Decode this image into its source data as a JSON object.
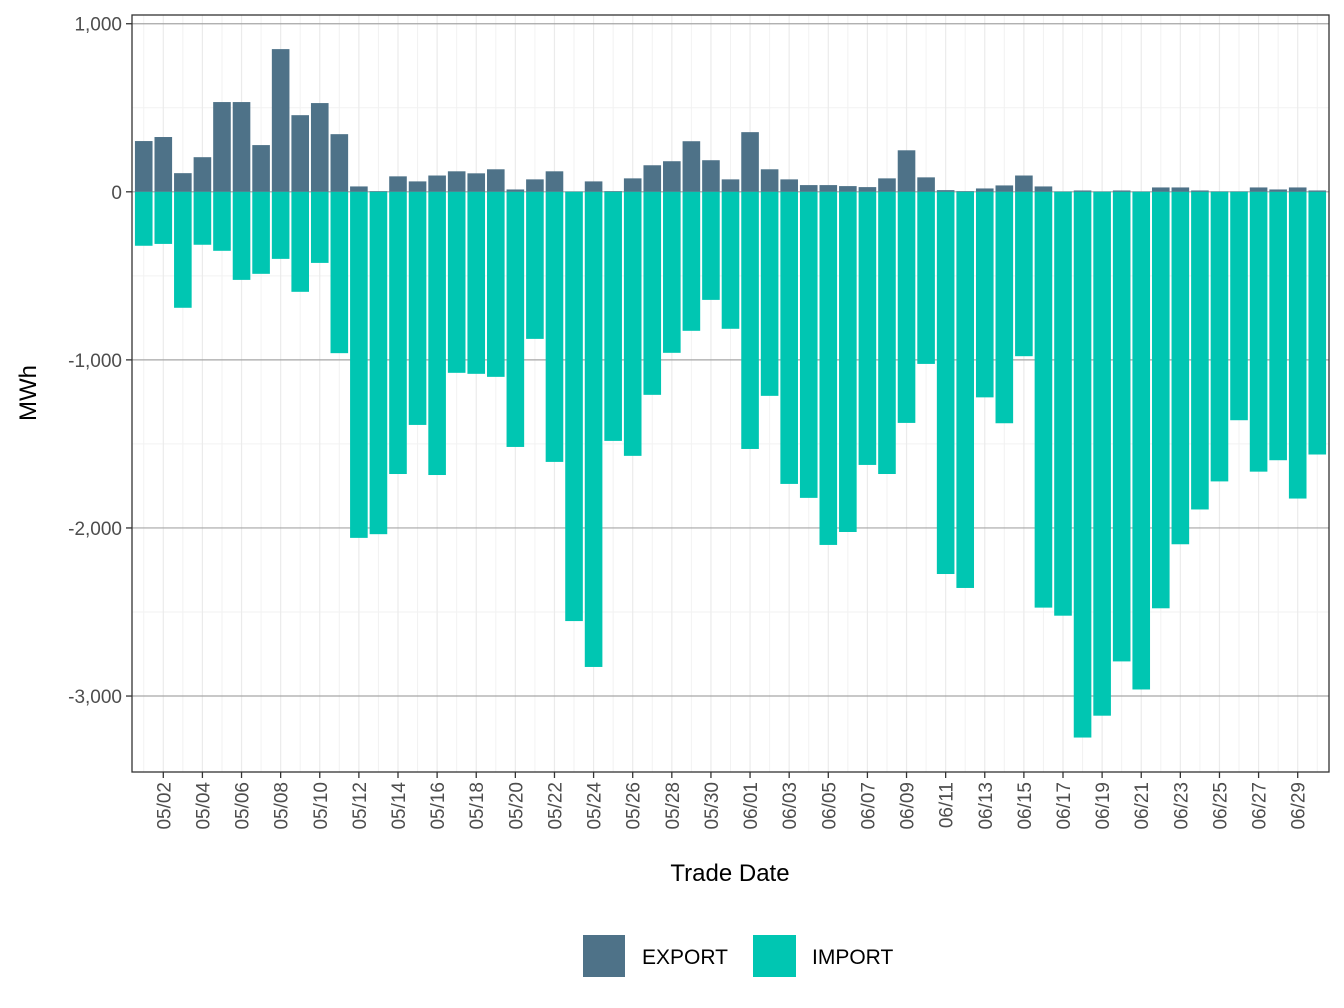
{
  "chart_data": {
    "type": "bar",
    "stacking": "diverging",
    "title": "",
    "xlabel": "Trade Date",
    "ylabel": "MWh",
    "ylim": [
      -3452,
      1052
    ],
    "y_ticks": [
      1000,
      0,
      -1000,
      -2000,
      -3000
    ],
    "y_tick_labels": [
      "1,000",
      "0",
      "-1,000",
      "-2,000",
      "-3,000"
    ],
    "y_minor_ticks": [
      500,
      -500,
      -1500,
      -2500
    ],
    "grid": true,
    "legend": {
      "position": "bottom",
      "entries": [
        "EXPORT",
        "IMPORT"
      ]
    },
    "categories": [
      "05/01",
      "05/02",
      "05/03",
      "05/04",
      "05/05",
      "05/06",
      "05/07",
      "05/08",
      "05/09",
      "05/10",
      "05/11",
      "05/12",
      "05/13",
      "05/14",
      "05/15",
      "05/16",
      "05/17",
      "05/18",
      "05/19",
      "05/20",
      "05/21",
      "05/22",
      "05/23",
      "05/24",
      "05/25",
      "05/26",
      "05/27",
      "05/28",
      "05/29",
      "05/30",
      "05/31",
      "06/01",
      "06/02",
      "06/03",
      "06/04",
      "06/05",
      "06/06",
      "06/07",
      "06/08",
      "06/09",
      "06/10",
      "06/11",
      "06/12",
      "06/13",
      "06/14",
      "06/15",
      "06/16",
      "06/17",
      "06/18",
      "06/19",
      "06/20",
      "06/21",
      "06/22",
      "06/23",
      "06/24",
      "06/25",
      "06/26",
      "06/27",
      "06/28",
      "06/29",
      "06/30"
    ],
    "x_tick_labels": [
      "05/02",
      "05/04",
      "05/06",
      "05/08",
      "05/10",
      "05/12",
      "05/14",
      "05/16",
      "05/18",
      "05/20",
      "05/22",
      "05/24",
      "05/26",
      "05/28",
      "05/30",
      "06/01",
      "06/03",
      "06/05",
      "06/07",
      "06/09",
      "06/11",
      "06/13",
      "06/15",
      "06/17",
      "06/19",
      "06/21",
      "06/23",
      "06/25",
      "06/27",
      "06/29"
    ],
    "series": [
      {
        "name": "EXPORT",
        "color": "#4E7288",
        "values": [
          302,
          326,
          111,
          206,
          534,
          534,
          278,
          849,
          456,
          528,
          343,
          32,
          4,
          92,
          62,
          97,
          122,
          110,
          134,
          14,
          74,
          122,
          1,
          62,
          4,
          80,
          158,
          182,
          301,
          188,
          74,
          355,
          134,
          74,
          40,
          40,
          34,
          28,
          80,
          247,
          86,
          10,
          4,
          20,
          38,
          97,
          32,
          1,
          8,
          1,
          8,
          1,
          26,
          26,
          8,
          2,
          2,
          26,
          14,
          26,
          8
        ]
      },
      {
        "name": "IMPORT",
        "color": "#00C6B2",
        "values": [
          -321,
          -310,
          -690,
          -315,
          -351,
          -524,
          -488,
          -399,
          -595,
          -423,
          -960,
          -2059,
          -2037,
          -1679,
          -1387,
          -1685,
          -1077,
          -1083,
          -1101,
          -1518,
          -875,
          -1607,
          -2554,
          -2827,
          -1482,
          -1571,
          -1208,
          -958,
          -827,
          -643,
          -815,
          -1530,
          -1214,
          -1738,
          -1821,
          -2101,
          -2024,
          -1625,
          -1679,
          -1375,
          -1024,
          -2274,
          -2357,
          -1223,
          -1377,
          -978,
          -2474,
          -2522,
          -3247,
          -3117,
          -2794,
          -2961,
          -2478,
          -2097,
          -1890,
          -1723,
          -1359,
          -1665,
          -1597,
          -1825,
          -1563
        ]
      }
    ]
  }
}
